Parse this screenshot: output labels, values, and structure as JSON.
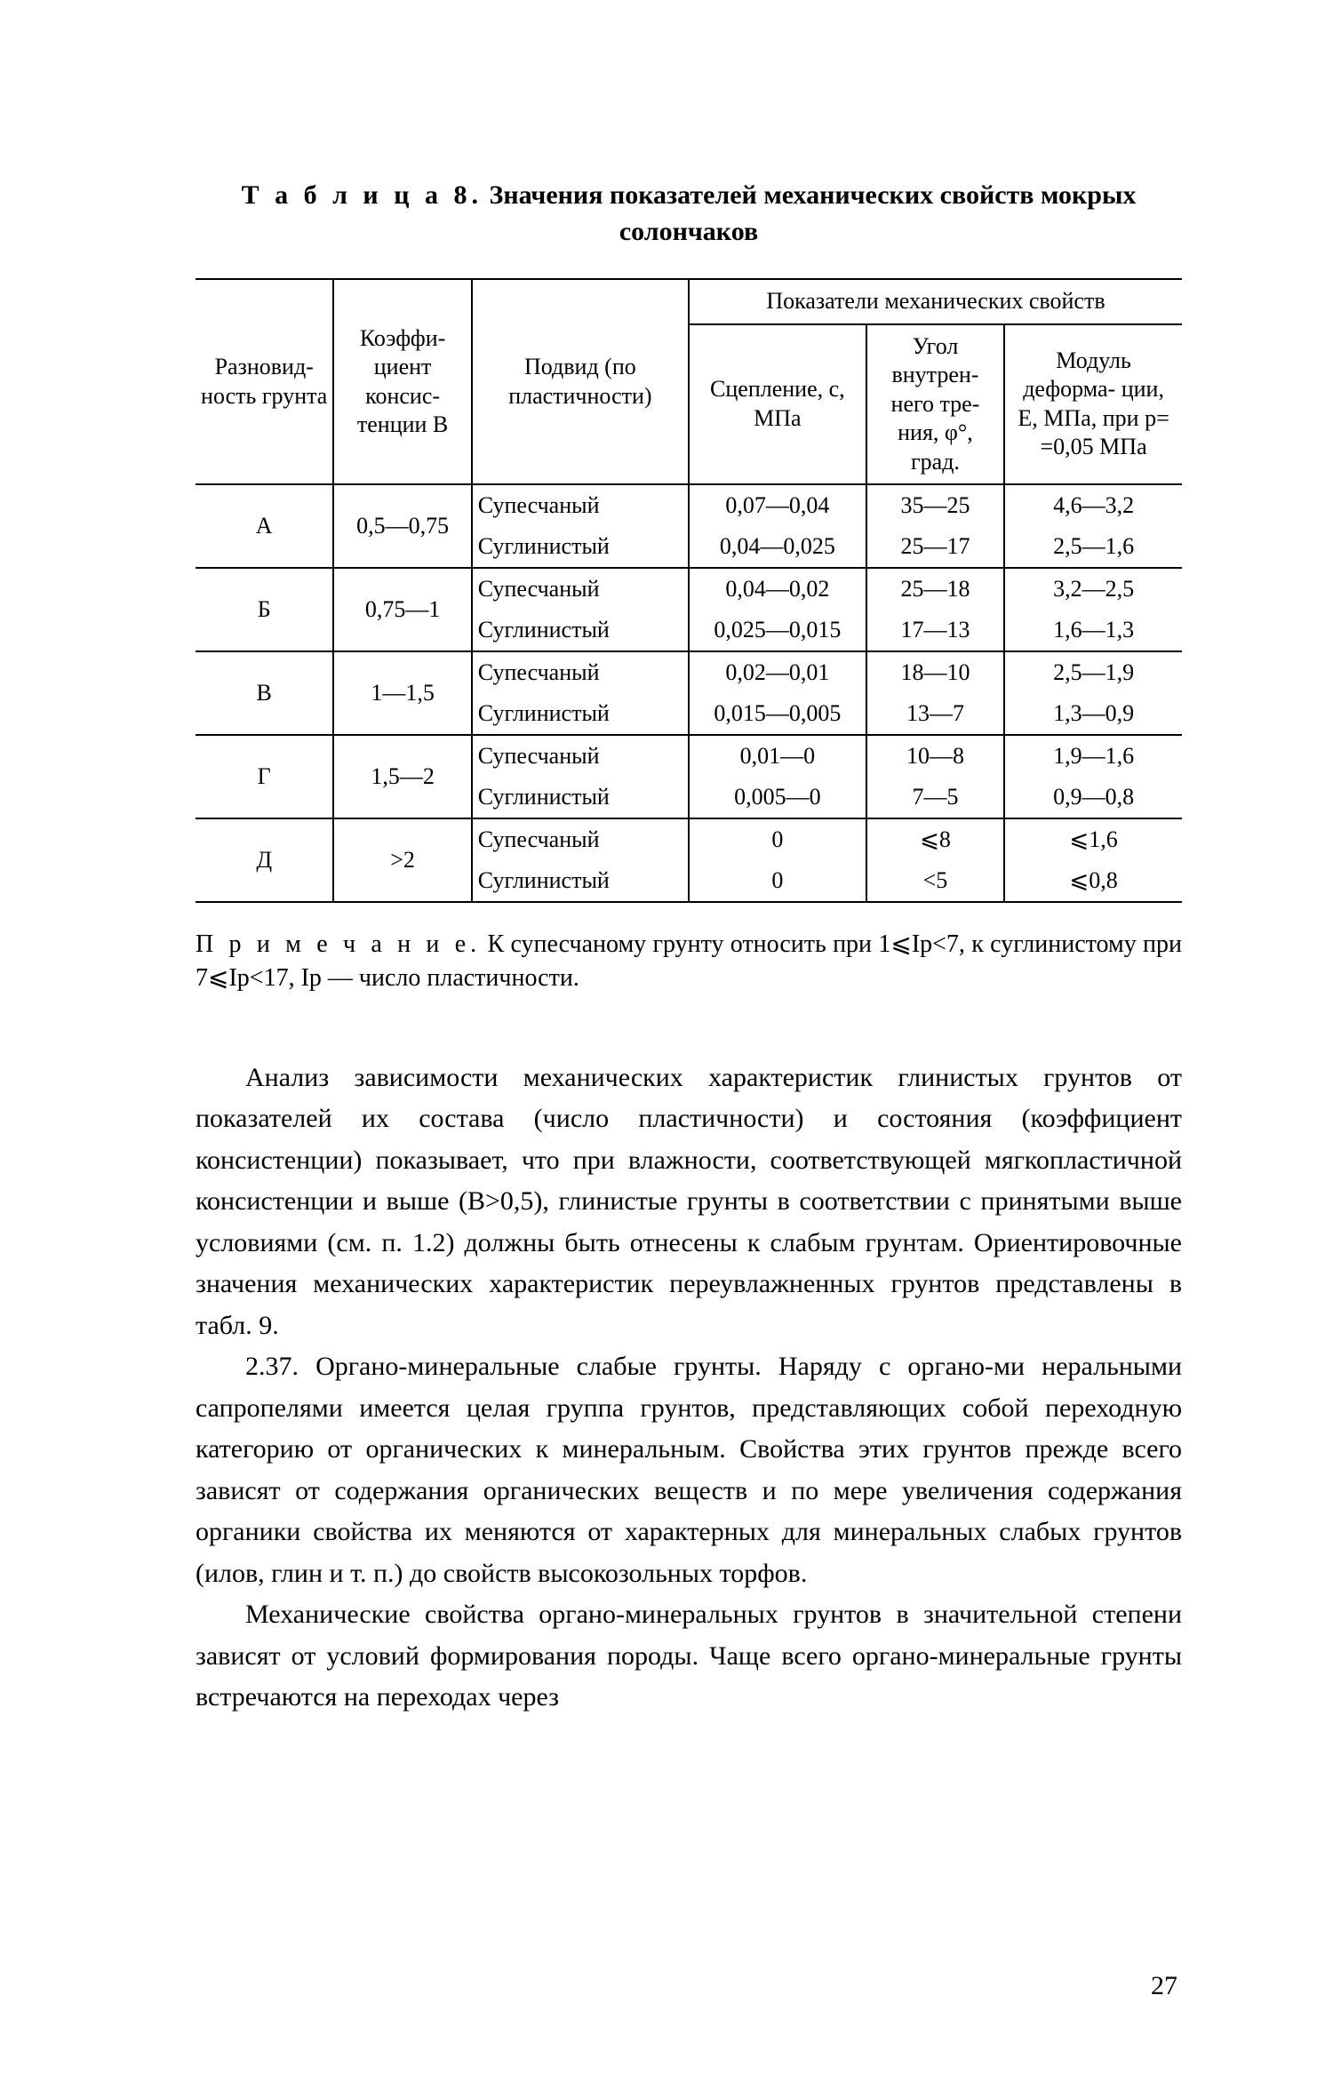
{
  "table": {
    "caption_prefix": "Т а б л и ц а 8.",
    "caption_rest": " Значения показателей механических свойств мокрых солончаков",
    "columns": {
      "variety": "Разновид-\nность грунта",
      "coef": "Коэффи-\nциент консис-\nтенции\nВ",
      "subspecies": "Подвид (по пластичности)",
      "group": "Показатели механических свойств",
      "adhesion": "Сцепление,\n с, МПа",
      "angle": "Угол внутрен-\nнего тре-\nния, φ°, град.",
      "modulus": "Модуль деформа-\nции, E, МПа, при p=\n=0,05 МПа"
    },
    "rows": [
      {
        "v": "А",
        "k": "0,5—0,75",
        "s1": "Супесчаный",
        "s2": "Суглинистый",
        "c1": "0,07—0,04",
        "c2": "0,04—0,025",
        "a1": "35—25",
        "a2": "25—17",
        "m1": "4,6—3,2",
        "m2": "2,5—1,6"
      },
      {
        "v": "Б",
        "k": "0,75—1",
        "s1": "Супесчаный",
        "s2": "Суглинистый",
        "c1": "0,04—0,02",
        "c2": "0,025—0,015",
        "a1": "25—18",
        "a2": "17—13",
        "m1": "3,2—2,5",
        "m2": "1,6—1,3"
      },
      {
        "v": "В",
        "k": "1—1,5",
        "s1": "Супесчаный",
        "s2": "Суглинистый",
        "c1": "0,02—0,01",
        "c2": "0,015—0,005",
        "a1": "18—10",
        "a2": "13—7",
        "m1": "2,5—1,9",
        "m2": "1,3—0,9"
      },
      {
        "v": "Г",
        "k": "1,5—2",
        "s1": "Супесчаный",
        "s2": "Суглинистый",
        "c1": "0,01—0",
        "c2": "0,005—0",
        "a1": "10—8",
        "a2": "7—5",
        "m1": "1,9—1,6",
        "m2": "0,9—0,8"
      },
      {
        "v": "Д",
        "k": ">2",
        "s1": "Супесчаный",
        "s2": "Суглинистый",
        "c1": "0",
        "c2": "0",
        "a1": "⩽8",
        "a2": "<5",
        "m1": "⩽1,6",
        "m2": "⩽0,8"
      }
    ]
  },
  "note": {
    "prefix": "П р и м е ч а н и е.",
    "text": " К супесчаному грунту относить при 1⩽Iр<7, к суглинистому при 7⩽Iр<17, Iр — число пластичности."
  },
  "paras": {
    "p1": "Анализ зависимости механических характеристик глинистых грунтов от показателей их состава (число пластичности) и состояния (коэффициент консистенции) показывает, что при влажности, соответствующей мягкопластичной консистенции и выше (B>0,5), глинистые грунты в соответствии с принятыми выше условиями (см. п. 1.2) должны быть отнесены к слабым грунтам. Ориентировочные значения механических характеристик переувлажненных грунтов представлены в табл. 9.",
    "p2": "2.37. Органо-минеральные слабые грунты. Наряду с органо-ми неральными сапропелями имеется целая группа грунтов, представляющих собой переходную категорию от органических к минеральным. Свойства этих грунтов прежде всего зависят от содержания органических веществ и по мере увеличения содержания органики свойства их меняются от характерных для минеральных слабых грунтов (илов, глин и т. п.) до свойств высокозольных торфов.",
    "p3": "Механические свойства органо-минеральных грунтов в значительной степени зависят от условий формирования породы. Чаще всего органо-минеральные грунты встречаются на переходах через"
  },
  "page_number": "27"
}
